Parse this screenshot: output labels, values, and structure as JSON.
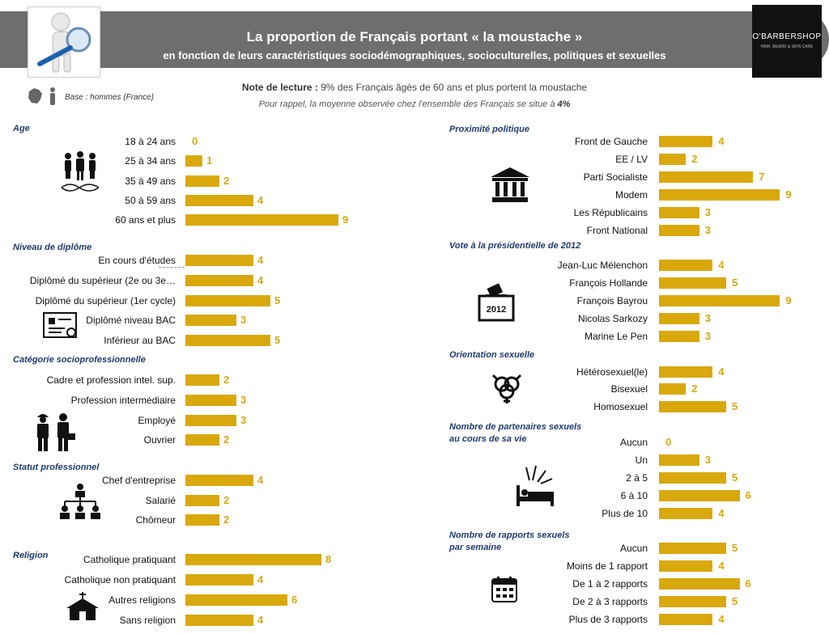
{
  "header": {
    "title": "La proportion de Français portant « la moustache »",
    "subtitle": "en fonction de leurs caractéristiques sociodémographiques, socioculturelles, politiques et sexuelles"
  },
  "logo": {
    "brand": "O'BARBERSHOP",
    "tagline": "HAIR, BEARD & SKIN CARE"
  },
  "note": {
    "label": "Note de lecture :",
    "text": " 9% des Français âgés de 60 ans et plus portent la moustache",
    "reminder_text": "Pour rappel, la moyenne observée chez l'ensemble des Français se situe à ",
    "reminder_value": "4%"
  },
  "base": "Base : hommes (France)",
  "colors": {
    "bar": "#d9a80d",
    "section_title": "#1f3b6d",
    "header": "#6e6e6e"
  },
  "icons": [
    "magnifier-figure-icon",
    "france-map-icon",
    "man-icon",
    "family-dna-icon",
    "diploma-icon",
    "workers-icon",
    "org-chart-icon",
    "church-icon",
    "government-building-icon",
    "ballot-box-icon",
    "gender-symbols-icon",
    "bed-icon",
    "calendar-icon"
  ],
  "chart_data": {
    "type": "bar",
    "unit": "%",
    "sections": [
      {
        "title": "Age",
        "icon": "family-dna-icon",
        "items": [
          {
            "label": "18 à 24 ans",
            "value": 0
          },
          {
            "label": "25 à 34 ans",
            "value": 1
          },
          {
            "label": "35 à 49 ans",
            "value": 2
          },
          {
            "label": "50 à 59 ans",
            "value": 4
          },
          {
            "label": "60 ans et plus",
            "value": 9
          }
        ]
      },
      {
        "title": "Niveau de diplôme",
        "icon": "diploma-icon",
        "items": [
          {
            "label": "En cours d'études",
            "value": 4
          },
          {
            "label": "Diplômé du supérieur (2e ou 3e…",
            "value": 4
          },
          {
            "label": "Diplômé du supérieur (1er cycle)",
            "value": 5
          },
          {
            "label": "Diplômé niveau BAC",
            "value": 3
          },
          {
            "label": "Inférieur au BAC",
            "value": 5
          }
        ]
      },
      {
        "title": "Catégorie socioprofessionnelle",
        "icon": "workers-icon",
        "items": [
          {
            "label": "Cadre et profession intel. sup.",
            "value": 2
          },
          {
            "label": "Profession intermédiaire",
            "value": 3
          },
          {
            "label": "Employé",
            "value": 3
          },
          {
            "label": "Ouvrier",
            "value": 2
          }
        ]
      },
      {
        "title": "Statut professionnel",
        "icon": "org-chart-icon",
        "items": [
          {
            "label": "Chef d'entreprise",
            "value": 4
          },
          {
            "label": "Salarié",
            "value": 2
          },
          {
            "label": "Chômeur",
            "value": 2
          }
        ]
      },
      {
        "title": "Religion",
        "icon": "church-icon",
        "items": [
          {
            "label": "Catholique pratiquant",
            "value": 8
          },
          {
            "label": "Catholique non pratiquant",
            "value": 4
          },
          {
            "label": "Autres religions",
            "value": 6
          },
          {
            "label": "Sans  religion",
            "value": 4
          }
        ]
      },
      {
        "title": "Proximité politique",
        "icon": "government-building-icon",
        "items": [
          {
            "label": "Front de Gauche",
            "value": 4
          },
          {
            "label": "EE / LV",
            "value": 2
          },
          {
            "label": "Parti Socialiste",
            "value": 7
          },
          {
            "label": "Modem",
            "value": 9
          },
          {
            "label": "Les Républicains",
            "value": 3
          },
          {
            "label": "Front National",
            "value": 3
          }
        ]
      },
      {
        "title": "Vote à la présidentielle de 2012",
        "icon": "ballot-box-icon",
        "icon_text": "2012",
        "items": [
          {
            "label": "Jean-Luc Mélenchon",
            "value": 4
          },
          {
            "label": "François Hollande",
            "value": 5
          },
          {
            "label": "François Bayrou",
            "value": 9
          },
          {
            "label": "Nicolas Sarkozy",
            "value": 3
          },
          {
            "label": "Marine Le Pen",
            "value": 3
          }
        ]
      },
      {
        "title": "Orientation sexuelle",
        "icon": "gender-symbols-icon",
        "items": [
          {
            "label": "Hétérosexuel(le)",
            "value": 4
          },
          {
            "label": "Bisexuel",
            "value": 2
          },
          {
            "label": "Homosexuel",
            "value": 5
          }
        ]
      },
      {
        "title": "Nombre de partenaires sexuels au cours de sa vie",
        "title_lines": [
          "Nombre de partenaires sexuels",
          "au cours de sa vie"
        ],
        "icon": "bed-icon",
        "items": [
          {
            "label": "Aucun",
            "value": 0
          },
          {
            "label": "Un",
            "value": 3
          },
          {
            "label": "2 à 5",
            "value": 5
          },
          {
            "label": "6 à 10",
            "value": 6
          },
          {
            "label": "Plus de 10",
            "value": 4
          }
        ]
      },
      {
        "title": "Nombre de rapports sexuels par semaine",
        "title_lines": [
          "Nombre de rapports sexuels",
          "par semaine"
        ],
        "icon": "calendar-icon",
        "items": [
          {
            "label": "Aucun",
            "value": 5
          },
          {
            "label": "Moins de 1 rapport",
            "value": 4
          },
          {
            "label": "De 1 à 2 rapports",
            "value": 6
          },
          {
            "label": "De 2 à 3 rapports",
            "value": 5
          },
          {
            "label": "Plus de 3 rapports",
            "value": 4
          }
        ]
      }
    ]
  }
}
